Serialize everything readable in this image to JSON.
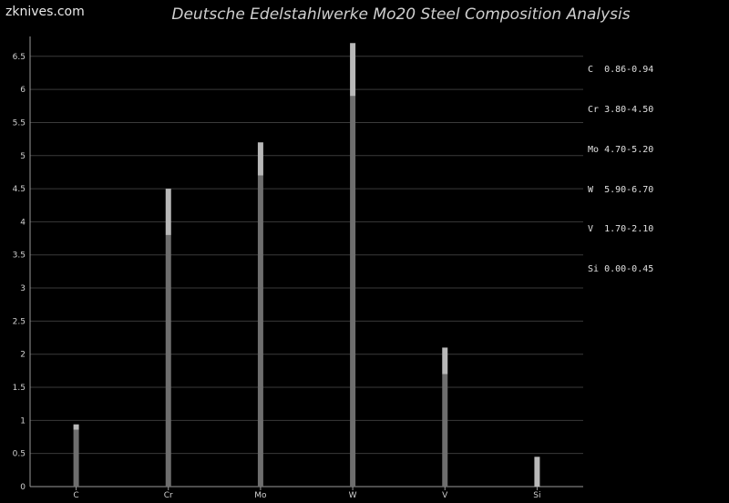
{
  "watermark": "zknives.com",
  "chart_data": {
    "type": "bar",
    "title": "Deutsche Edelstahlwerke Mo20 Steel Composition Analysis",
    "categories": [
      "C",
      "Cr",
      "Mo",
      "W",
      "V",
      "Si"
    ],
    "series": [
      {
        "values_min": [
          0.86,
          3.8,
          4.7,
          5.9,
          1.7,
          0.0
        ],
        "values_max": [
          0.94,
          4.5,
          5.2,
          6.7,
          2.1,
          0.45
        ]
      }
    ],
    "ylim": [
      0,
      6.8
    ],
    "yticks": [
      "0",
      "0.5",
      "1",
      "1.5",
      "2",
      "2.5",
      "3",
      "3.5",
      "4",
      "4.5",
      "5",
      "5.5",
      "6",
      "6.5"
    ],
    "grid": true,
    "legend_position": "top-right",
    "legend": [
      {
        "element": "C",
        "range": "0.86-0.94"
      },
      {
        "element": "Cr",
        "range": "3.80-4.50"
      },
      {
        "element": "Mo",
        "range": "4.70-5.20"
      },
      {
        "element": "W",
        "range": "5.90-6.70"
      },
      {
        "element": "V",
        "range": "1.70-2.10"
      },
      {
        "element": "Si",
        "range": "0.00-0.45"
      }
    ],
    "colors": {
      "background": "#000000",
      "bar_min": "#6e6e6e",
      "bar_range": "#b8b8b8",
      "grid": "#3a3a3a",
      "axis": "#9a9a9a"
    }
  }
}
